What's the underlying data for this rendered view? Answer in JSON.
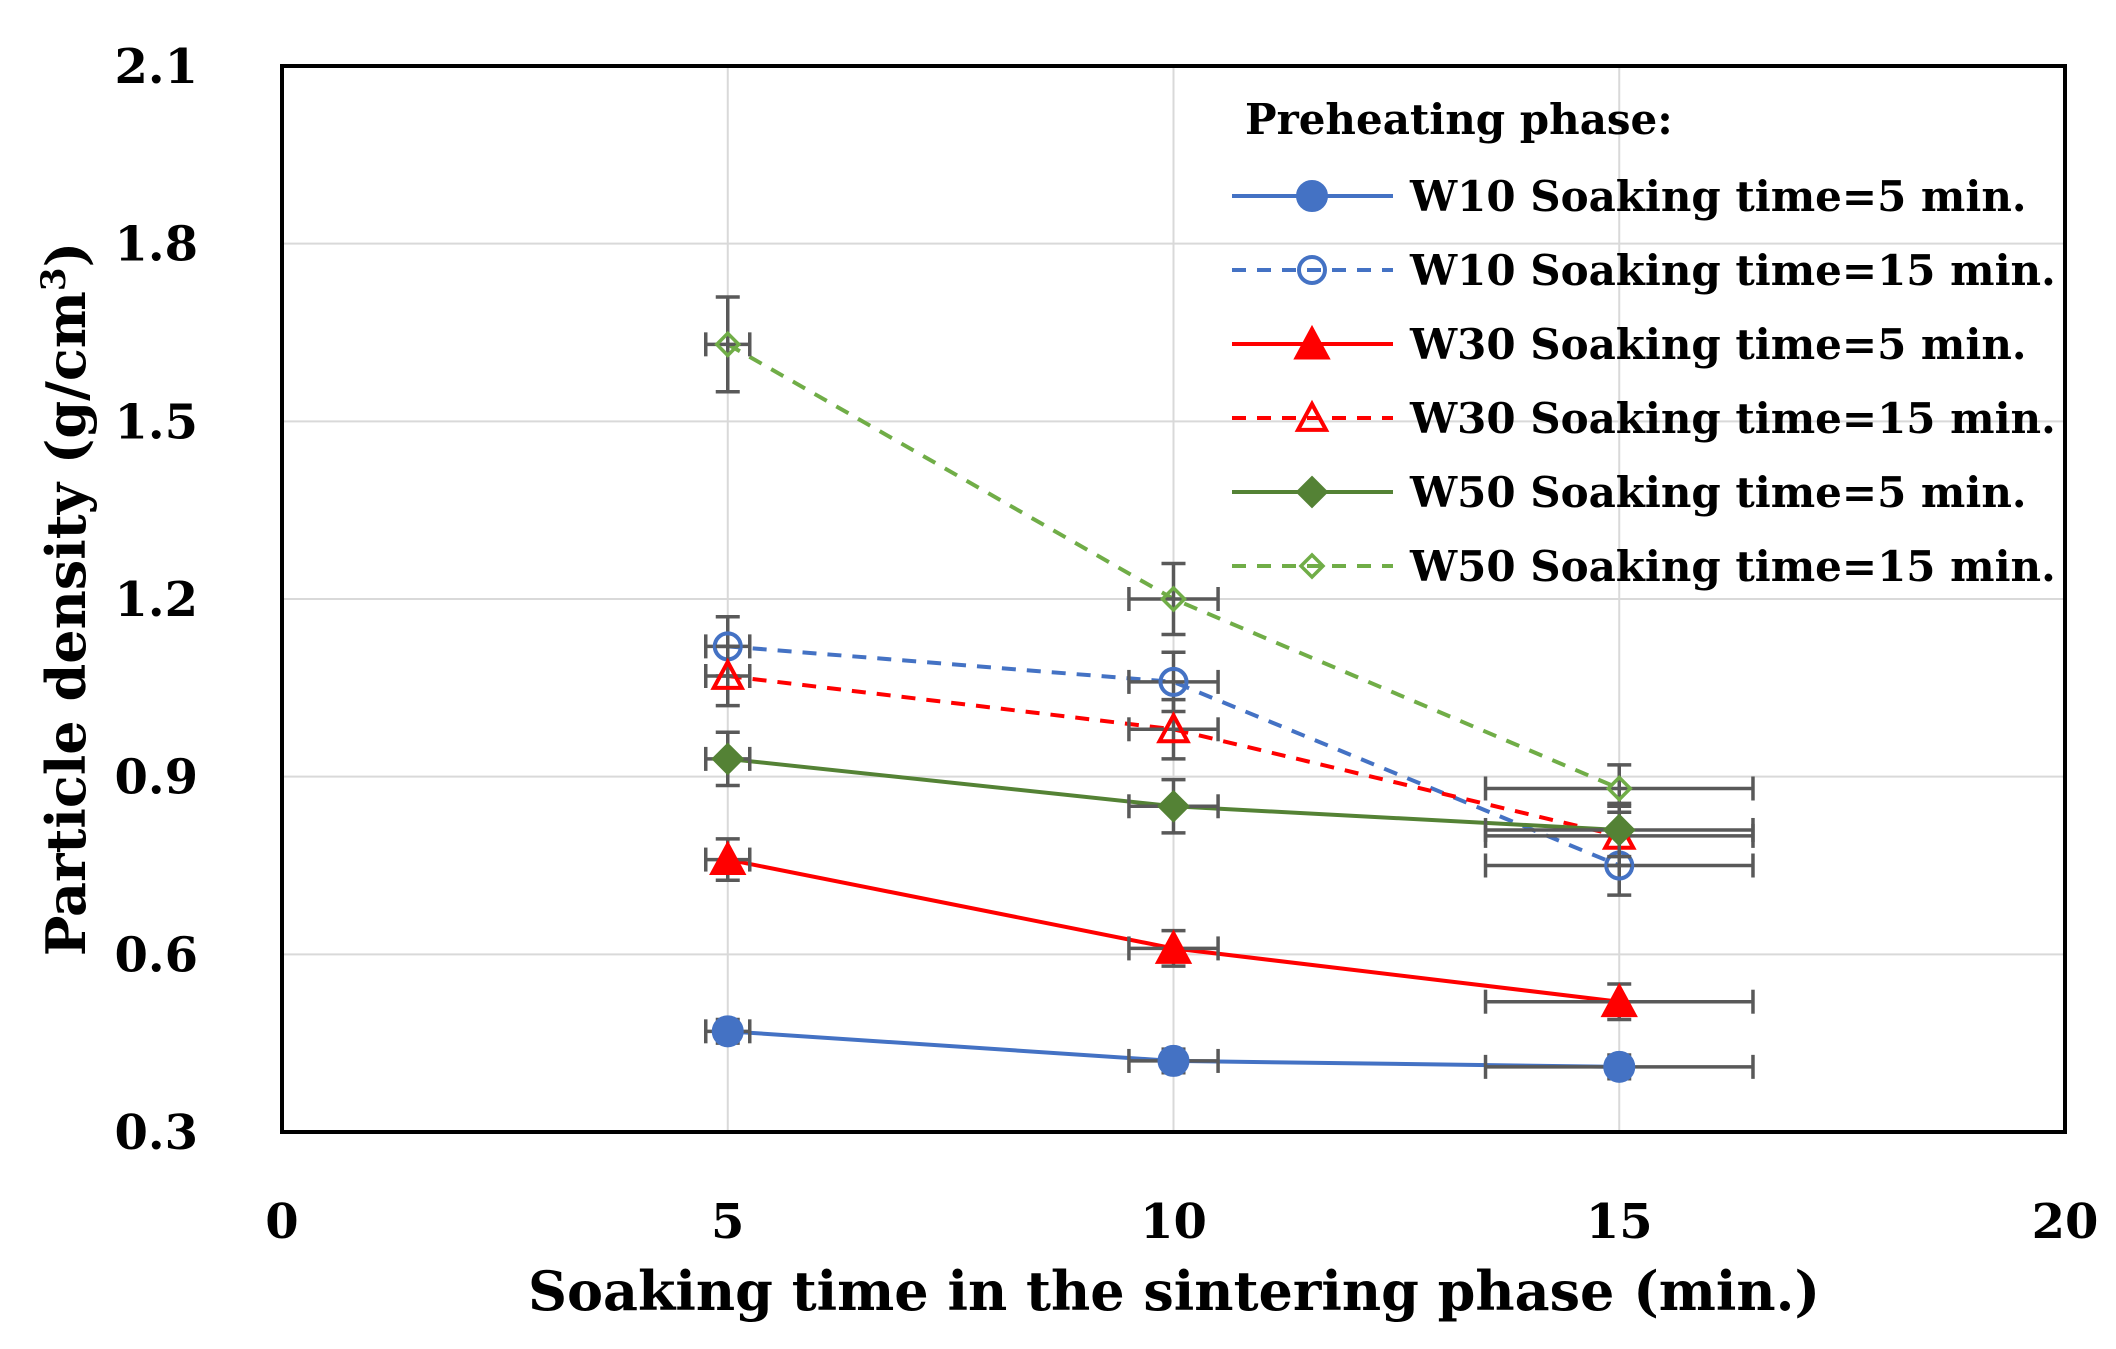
{
  "chart_data": {
    "type": "line",
    "title": "",
    "xlabel": "Soaking time in the sintering phase (min.)",
    "ylabel_main": "Particle density (g/cm",
    "ylabel_sup": "3",
    "ylabel_close": ")",
    "xlim": [
      0,
      20
    ],
    "ylim": [
      0.3,
      2.1
    ],
    "xticks": [
      "0",
      "5",
      "10",
      "15",
      "20"
    ],
    "yticks": [
      "0.3",
      "0.6",
      "0.9",
      "1.2",
      "1.5",
      "1.8",
      "2.1"
    ],
    "grid": true,
    "legend_title": "Preheating phase:",
    "legend_position": "top-right",
    "x": [
      5,
      10,
      15
    ],
    "series": [
      {
        "name": "W10 Soaking time=5 min.",
        "values": [
          0.47,
          0.42,
          0.41
        ],
        "err": [
          0.02,
          0.02,
          0.02
        ],
        "color": "#4472C4",
        "dash": "solid",
        "marker": "circle",
        "filled": true
      },
      {
        "name": "W10 Soaking time=15 min.",
        "values": [
          1.12,
          1.06,
          0.75
        ],
        "err": [
          0.05,
          0.05,
          0.05
        ],
        "color": "#4472C4",
        "dash": "dashed",
        "marker": "circle",
        "filled": false
      },
      {
        "name": "W30 Soaking time=5 min.",
        "values": [
          0.76,
          0.61,
          0.52
        ],
        "err": [
          0.035,
          0.03,
          0.03
        ],
        "color": "#FF0000",
        "dash": "solid",
        "marker": "triangle",
        "filled": true
      },
      {
        "name": "W30 Soaking time=15 min.",
        "values": [
          1.07,
          0.98,
          0.8
        ],
        "err": [
          0.05,
          0.05,
          0.05
        ],
        "color": "#FF0000",
        "dash": "dashed",
        "marker": "triangle",
        "filled": false
      },
      {
        "name": "W50 Soaking time=5 min.",
        "values": [
          0.93,
          0.85,
          0.81
        ],
        "err": [
          0.045,
          0.045,
          0.045
        ],
        "color": "#548235",
        "dash": "solid",
        "marker": "diamond",
        "filled": true
      },
      {
        "name": "W50 Soaking time=15 min.",
        "values": [
          1.63,
          1.2,
          0.88
        ],
        "err": [
          0.08,
          0.06,
          0.04
        ],
        "color": "#70AD47",
        "dash": "dashed",
        "marker": "diamond",
        "filled": false
      }
    ],
    "x_err": [
      0,
      0.5,
      1.5
    ],
    "errorbar_color": "#595959"
  }
}
